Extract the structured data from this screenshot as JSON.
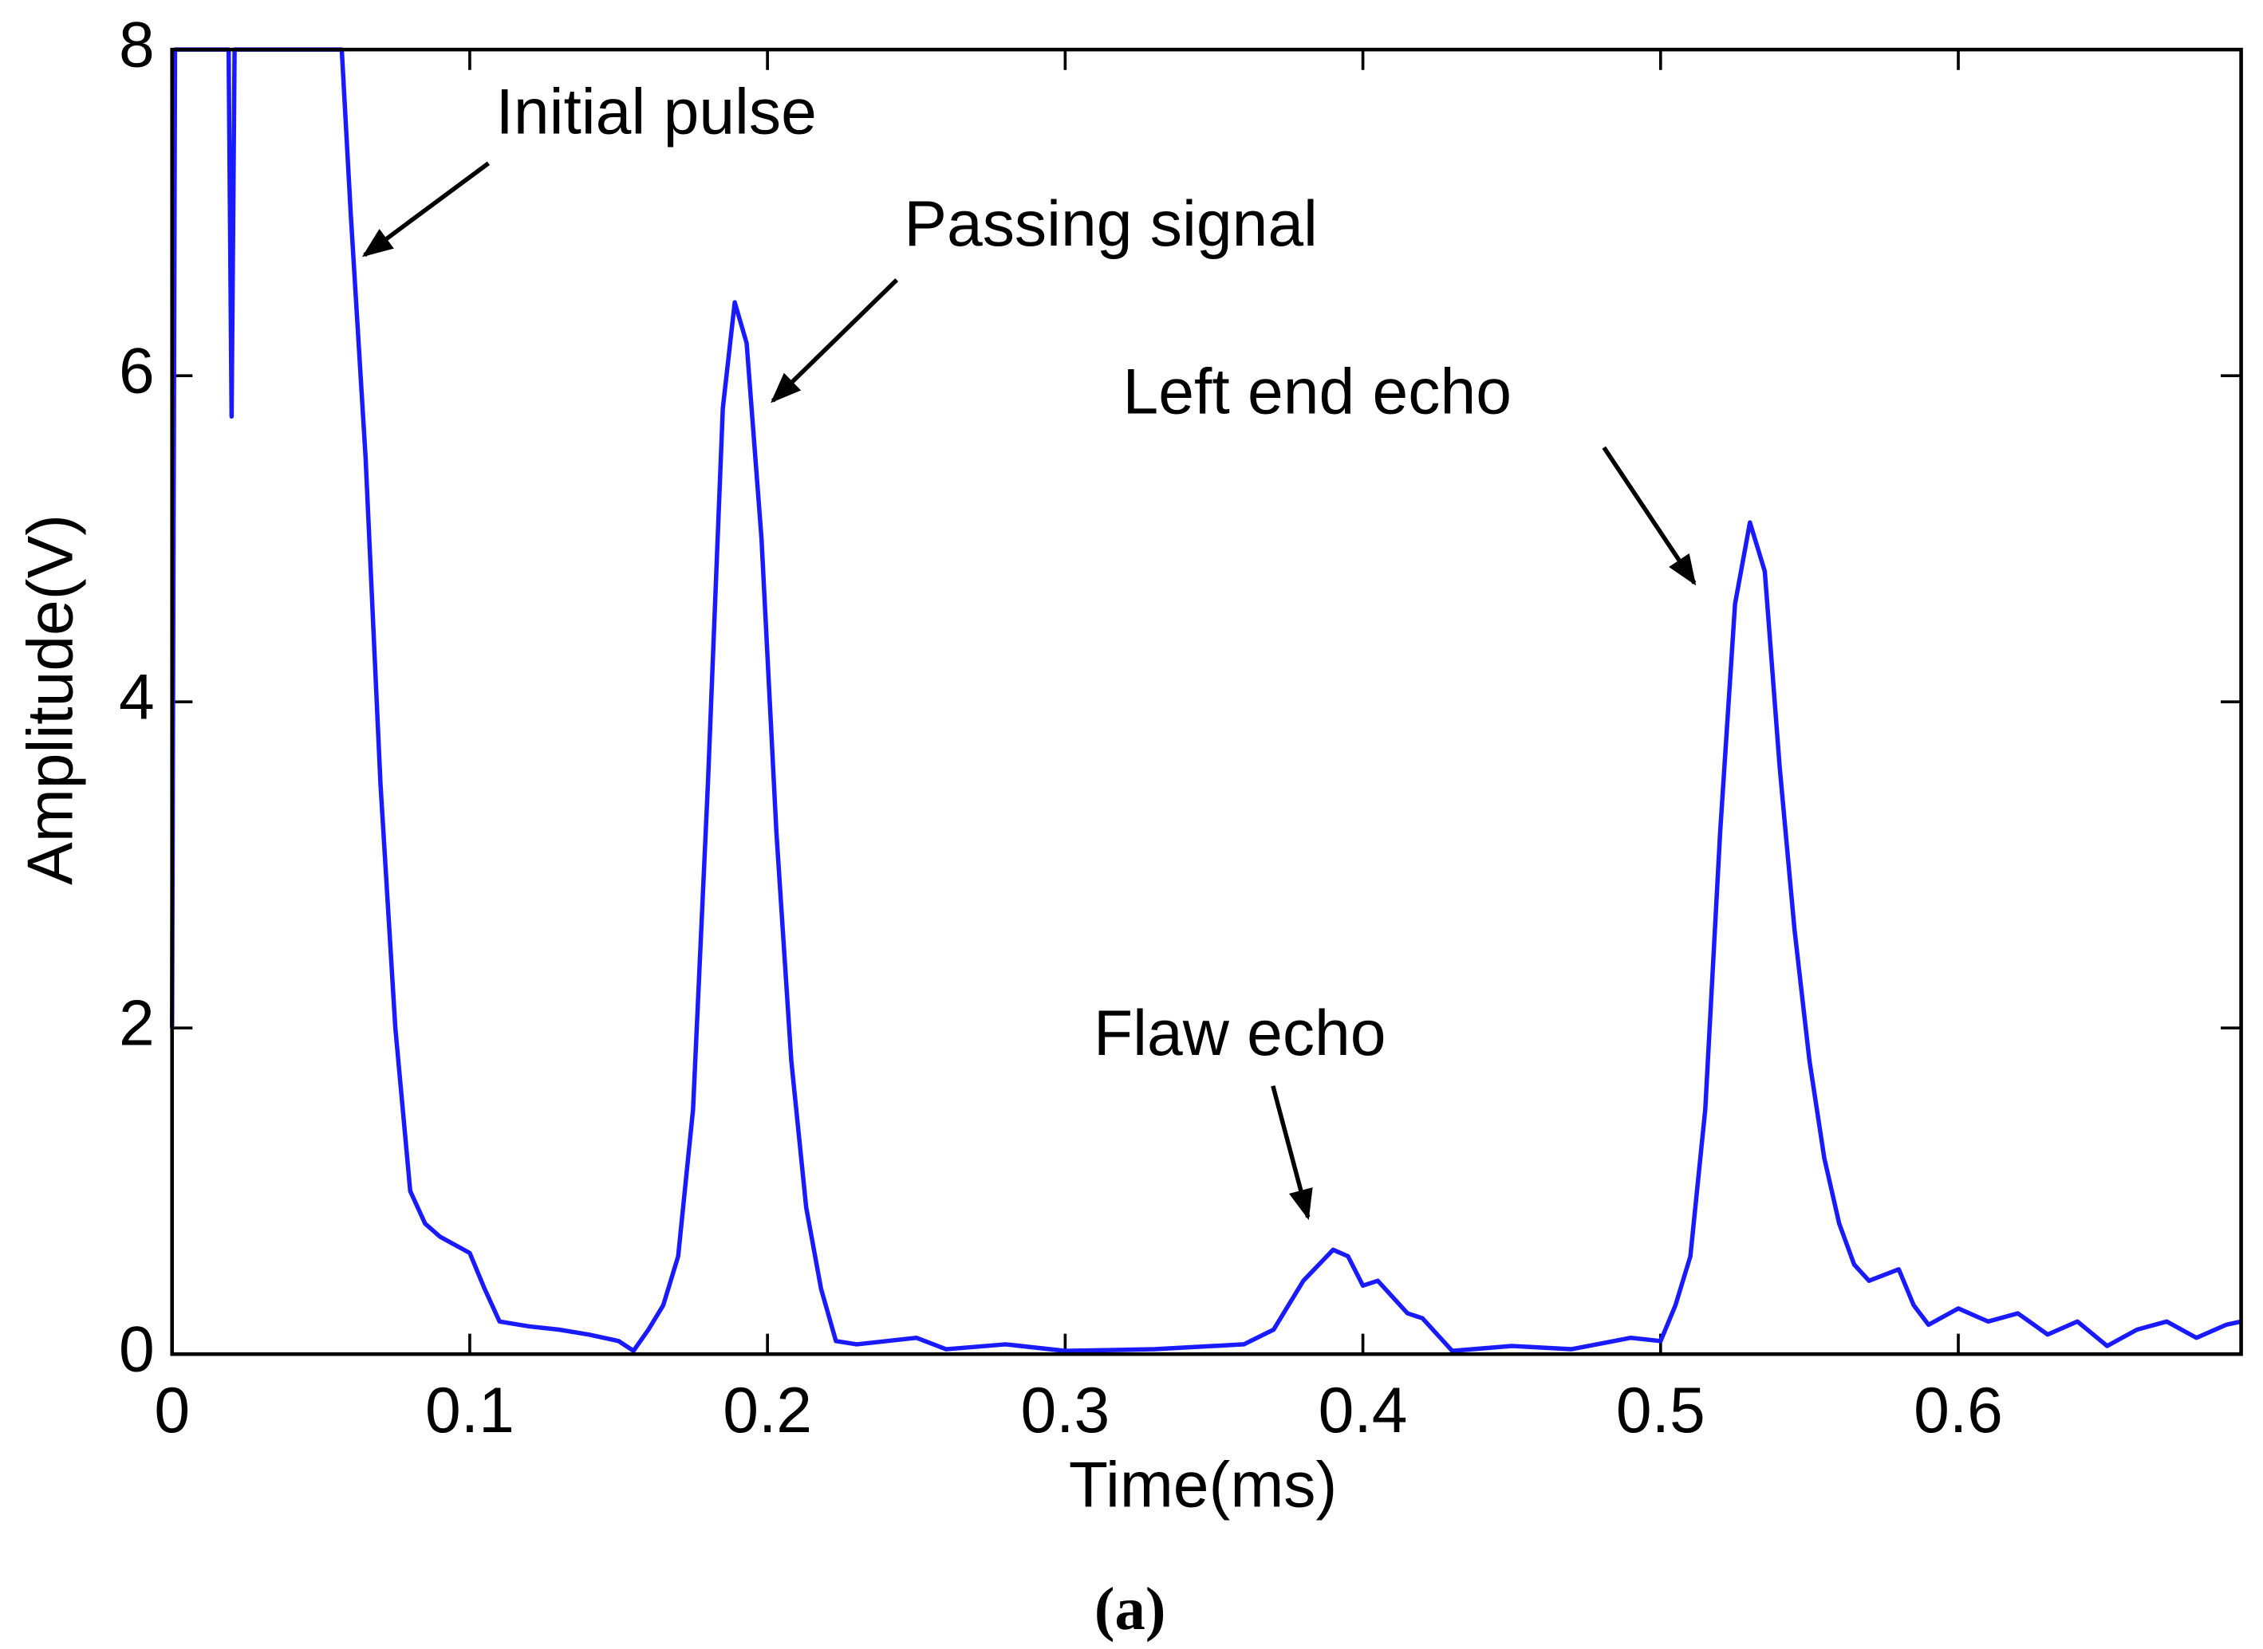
{
  "chart_data": {
    "type": "line",
    "xlabel": "Time(ms)",
    "ylabel": "Amplitude(V)",
    "caption": "(a)",
    "color": "#1a1aff",
    "xlim": [
      0,
      0.695
    ],
    "ylim": [
      0,
      8
    ],
    "xticks": [
      0,
      0.1,
      0.2,
      0.3,
      0.4,
      0.5,
      0.6
    ],
    "yticks": [
      0,
      2,
      4,
      6,
      8
    ],
    "annotations": [
      {
        "text": "Initial pulse"
      },
      {
        "text": "Passing signal"
      },
      {
        "text": "Left end echo"
      },
      {
        "text": "Flaw echo"
      }
    ],
    "x": [
      0,
      0.001,
      0.019,
      0.02,
      0.021,
      0.057,
      0.06,
      0.065,
      0.07,
      0.075,
      0.08,
      0.085,
      0.09,
      0.1,
      0.105,
      0.11,
      0.12,
      0.13,
      0.14,
      0.15,
      0.155,
      0.16,
      0.165,
      0.17,
      0.175,
      0.18,
      0.185,
      0.189,
      0.193,
      0.198,
      0.203,
      0.208,
      0.213,
      0.218,
      0.223,
      0.23,
      0.25,
      0.26,
      0.28,
      0.3,
      0.33,
      0.36,
      0.37,
      0.38,
      0.39,
      0.395,
      0.4,
      0.405,
      0.41,
      0.415,
      0.42,
      0.43,
      0.45,
      0.47,
      0.49,
      0.5,
      0.505,
      0.51,
      0.515,
      0.52,
      0.525,
      0.53,
      0.535,
      0.54,
      0.545,
      0.55,
      0.555,
      0.56,
      0.565,
      0.57,
      0.58,
      0.585,
      0.59,
      0.6,
      0.61,
      0.62,
      0.63,
      0.64,
      0.65,
      0.66,
      0.67,
      0.68,
      0.69,
      0.695
    ],
    "values": [
      2,
      8,
      8,
      5.75,
      8,
      8,
      7,
      5.5,
      3.5,
      2,
      1,
      0.8,
      0.72,
      0.62,
      0.4,
      0.2,
      0.17,
      0.15,
      0.12,
      0.08,
      0.02,
      0.15,
      0.3,
      0.6,
      1.5,
      3.5,
      5.8,
      6.45,
      6.2,
      5,
      3.2,
      1.8,
      0.9,
      0.4,
      0.08,
      0.06,
      0.1,
      0.03,
      0.06,
      0.02,
      0.03,
      0.06,
      0.15,
      0.45,
      0.64,
      0.6,
      0.42,
      0.45,
      0.35,
      0.25,
      0.22,
      0.02,
      0.05,
      0.03,
      0.1,
      0.08,
      0.3,
      0.6,
      1.5,
      3.2,
      4.6,
      5.1,
      4.8,
      3.6,
      2.6,
      1.8,
      1.2,
      0.8,
      0.55,
      0.45,
      0.52,
      0.3,
      0.18,
      0.28,
      0.2,
      0.25,
      0.12,
      0.2,
      0.05,
      0.15,
      0.2,
      0.1,
      0.18,
      0.2
    ]
  }
}
